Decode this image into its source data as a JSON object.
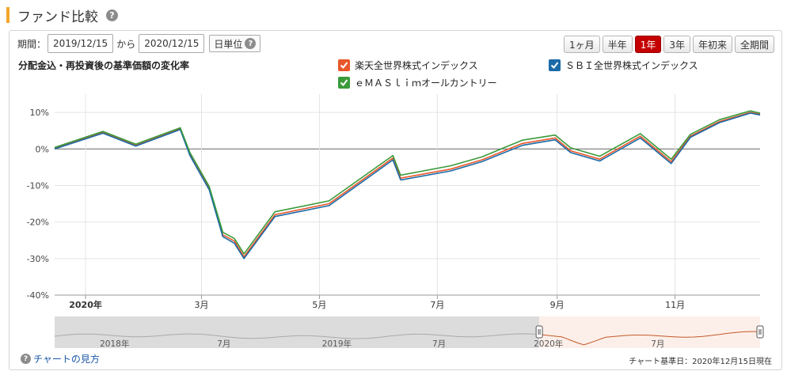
{
  "page": {
    "title": "ファンド比較"
  },
  "period": {
    "label": "期間：",
    "from": "2019/12/15",
    "between": "から",
    "to": "2020/12/15",
    "unit": "日単位"
  },
  "range_buttons": [
    {
      "label": "1ヶ月",
      "active": false
    },
    {
      "label": "半年",
      "active": false
    },
    {
      "label": "1年",
      "active": true
    },
    {
      "label": "3年",
      "active": false
    },
    {
      "label": "年初来",
      "active": false
    },
    {
      "label": "全期間",
      "active": false
    }
  ],
  "colors": {
    "rakuten": "#e8572a",
    "sbi": "#1a6aa8",
    "emaxis": "#3a9a3a",
    "accent": "#f4a62a",
    "active_button": "#c40000"
  },
  "chart_data": {
    "type": "line",
    "title": "分配金込・再投資後の基準価額の変化率",
    "y_unit": "%",
    "ylim": [
      -40,
      15
    ],
    "yticks": [
      10,
      0,
      -10,
      -20,
      -30,
      -40
    ],
    "ytick_labels": [
      "10%",
      "0%",
      "-10%",
      "-20%",
      "-30%",
      "-40%"
    ],
    "xlim": [
      "2019-12-16",
      "2020-12-15"
    ],
    "xticks": [
      {
        "date": "2020-01-01",
        "label": "2020年",
        "bold": true
      },
      {
        "date": "2020-03-01",
        "label": "3月",
        "bold": false
      },
      {
        "date": "2020-05-01",
        "label": "5月",
        "bold": false
      },
      {
        "date": "2020-07-01",
        "label": "7月",
        "bold": false
      },
      {
        "date": "2020-09-01",
        "label": "9月",
        "bold": false
      },
      {
        "date": "2020-11-01",
        "label": "11月",
        "bold": false
      }
    ],
    "grid": true,
    "legend_position": "top-right",
    "series": [
      {
        "name": "楽天全世界株式インデックス",
        "x": [
          "2019-12-16",
          "2020-01-10",
          "2020-01-27",
          "2020-02-19",
          "2020-02-24",
          "2020-03-05",
          "2020-03-12",
          "2020-03-18",
          "2020-03-23",
          "2020-04-08",
          "2020-05-06",
          "2020-06-08",
          "2020-06-12",
          "2020-07-08",
          "2020-07-24",
          "2020-08-14",
          "2020-08-31",
          "2020-09-08",
          "2020-09-23",
          "2020-10-14",
          "2020-10-30",
          "2020-11-09",
          "2020-11-24",
          "2020-12-10",
          "2020-12-15"
        ],
        "y": [
          0.2,
          4.5,
          1.0,
          5.5,
          -1.5,
          -10.8,
          -23.5,
          -25.2,
          -29.5,
          -18.0,
          -15.0,
          -2.5,
          -8.0,
          -5.5,
          -3.0,
          1.5,
          3.0,
          -0.5,
          -2.8,
          3.5,
          -3.5,
          3.5,
          7.5,
          10.0,
          9.5
        ]
      },
      {
        "name": "ＳＢＩ全世界株式インデックス",
        "x": [
          "2019-12-16",
          "2020-01-10",
          "2020-01-27",
          "2020-02-19",
          "2020-02-24",
          "2020-03-05",
          "2020-03-12",
          "2020-03-18",
          "2020-03-23",
          "2020-04-08",
          "2020-05-06",
          "2020-06-08",
          "2020-06-12",
          "2020-07-08",
          "2020-07-24",
          "2020-08-14",
          "2020-08-31",
          "2020-09-08",
          "2020-09-23",
          "2020-10-14",
          "2020-10-30",
          "2020-11-09",
          "2020-11-24",
          "2020-12-10",
          "2020-12-15"
        ],
        "y": [
          0.0,
          4.3,
          0.8,
          5.3,
          -1.8,
          -11.2,
          -24.0,
          -25.8,
          -30.0,
          -18.5,
          -15.5,
          -3.0,
          -8.5,
          -6.0,
          -3.5,
          1.0,
          2.5,
          -1.0,
          -3.3,
          3.0,
          -4.0,
          3.2,
          7.2,
          9.8,
          9.3
        ]
      },
      {
        "name": "ｅＭＡＳｌｉｍオールカントリー",
        "x": [
          "2019-12-16",
          "2020-01-10",
          "2020-01-27",
          "2020-02-19",
          "2020-02-24",
          "2020-03-05",
          "2020-03-12",
          "2020-03-18",
          "2020-03-23",
          "2020-04-08",
          "2020-05-06",
          "2020-06-08",
          "2020-06-12",
          "2020-07-08",
          "2020-07-24",
          "2020-08-14",
          "2020-08-31",
          "2020-09-08",
          "2020-09-23",
          "2020-10-14",
          "2020-10-30",
          "2020-11-09",
          "2020-11-24",
          "2020-12-10",
          "2020-12-15"
        ],
        "y": [
          0.4,
          4.8,
          1.3,
          5.8,
          -1.0,
          -10.3,
          -22.8,
          -24.5,
          -28.7,
          -17.2,
          -14.2,
          -1.8,
          -7.2,
          -4.6,
          -2.2,
          2.4,
          3.8,
          0.3,
          -2.0,
          4.2,
          -2.8,
          4.0,
          8.0,
          10.4,
          9.8
        ]
      }
    ],
    "navigator": {
      "labels": [
        "2018年",
        "7月",
        "2019年",
        "7月",
        "2020年",
        "7月"
      ]
    }
  },
  "footer": {
    "help_link": "チャートの見方",
    "as_of": "チャート基準日：2020年12月15日現在"
  }
}
